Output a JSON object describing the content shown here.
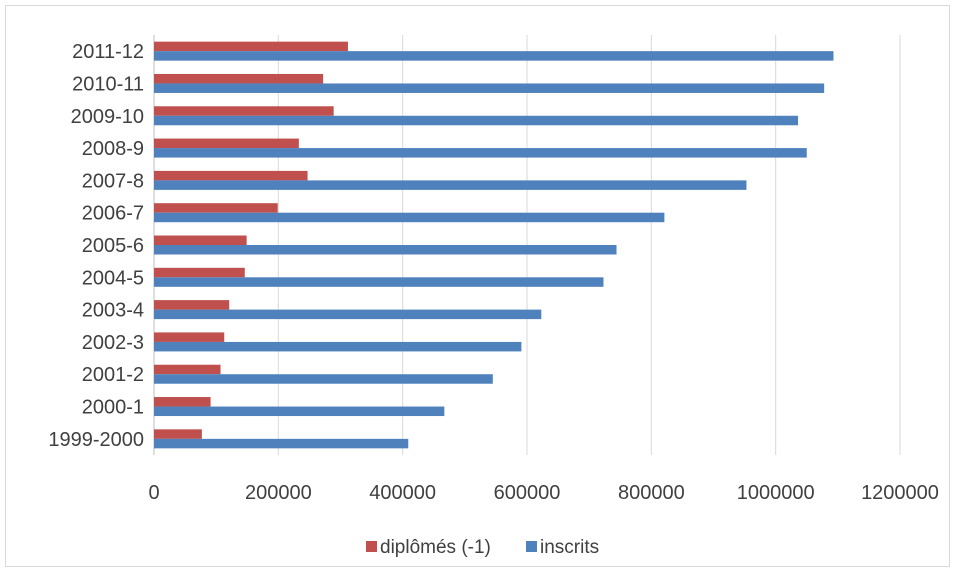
{
  "chart_data": {
    "type": "bar",
    "orientation": "horizontal",
    "categories": [
      "1999-2000",
      "2000-1",
      "2001-2",
      "2002-3",
      "2003-4",
      "2004-5",
      "2005-6",
      "2006-7",
      "2007-8",
      "2008-9",
      "2009-10",
      "2010-11",
      "2011-12"
    ],
    "series": [
      {
        "name": "diplômés (-1)",
        "color": "#c0504d",
        "values": [
          77000,
          91000,
          107000,
          113000,
          121000,
          146000,
          149000,
          199000,
          247000,
          233000,
          289000,
          272000,
          312000
        ]
      },
      {
        "name": "inscrits",
        "color": "#4f81bd",
        "values": [
          409000,
          467000,
          545000,
          591000,
          623000,
          723000,
          744000,
          821000,
          953000,
          1050000,
          1036000,
          1078000,
          1093000
        ]
      }
    ],
    "xticks": [
      "0",
      "200000",
      "400000",
      "600000",
      "800000",
      "1000000",
      "1200000"
    ],
    "xlim": [
      0,
      1200000
    ],
    "grid": true,
    "legend": "bottom"
  }
}
